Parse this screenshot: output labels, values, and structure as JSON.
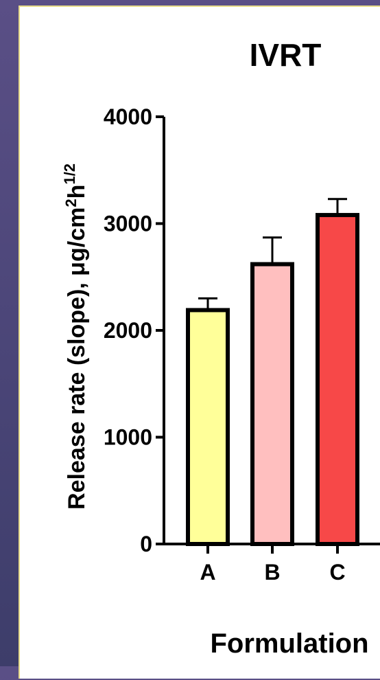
{
  "chart_data": {
    "type": "bar",
    "title": "IVRT",
    "xlabel": "Formulation",
    "ylabel": "Release rate (slope), μg/cm²h¹ᐟ²",
    "ylabel_parts": {
      "main": "Release rate (slope), μg/cm",
      "sup1": "2",
      "mid": "h",
      "sup2": "1/2"
    },
    "categories": [
      "A",
      "B",
      "C"
    ],
    "values": [
      2190,
      2620,
      3080
    ],
    "errors": [
      110,
      250,
      150
    ],
    "colors": [
      "#ffff99",
      "#ffbfbf",
      "#f74848"
    ],
    "ylim": [
      0,
      4000
    ],
    "yticks": [
      0,
      1000,
      2000,
      3000,
      4000
    ],
    "ytick_labels": [
      "0",
      "1000",
      "2000",
      "3000",
      "4000"
    ],
    "grid": false
  }
}
